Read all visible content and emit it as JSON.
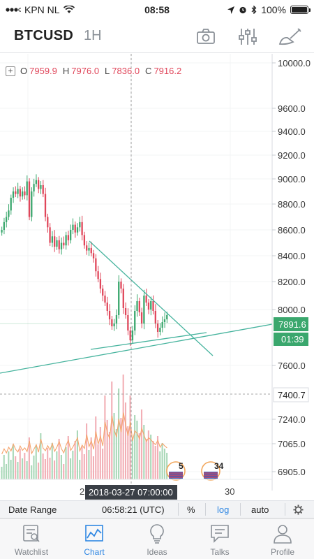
{
  "status_bar": {
    "carrier": "KPN NL",
    "time": "08:58",
    "battery": "100%"
  },
  "header": {
    "symbol": "BTCUSD",
    "interval": "1H",
    "icons": [
      "camera-icon",
      "indicators-icon",
      "drawing-tools-icon"
    ]
  },
  "legend": {
    "open_label": "O",
    "open": "7959.9",
    "high_label": "H",
    "high": "7976.0",
    "low_label": "L",
    "low": "7836.0",
    "close_label": "C",
    "close": "7916.2"
  },
  "chart_data": {
    "type": "candlestick",
    "price_axis_ticks": [
      "10000.0",
      "9600.0",
      "9400.0",
      "9200.0",
      "9000.0",
      "8800.0",
      "8600.0",
      "8400.0",
      "8200.0",
      "8000.0",
      "7600.0",
      "7240.0",
      "7065.0",
      "6905.0"
    ],
    "last_price": "7891.6",
    "countdown": "01:39",
    "crosshair_price": "7400.7",
    "crosshair_time": "2018-03-27 07:00:00",
    "x_tick_labels": [
      "2",
      "30"
    ],
    "event_badges": [
      "5",
      "34"
    ],
    "colors": {
      "up": "#3aa76d",
      "down": "#e0465a",
      "trendline": "#45b39d",
      "volume_up": "#a9d8b8",
      "volume_down": "#f2aeb5",
      "last_price": "#3aa76d"
    }
  },
  "toolbar": {
    "date_range": "Date Range",
    "clock": "06:58:21 (UTC)",
    "percent": "%",
    "log": "log",
    "auto": "auto"
  },
  "tabs": [
    {
      "label": "Watchlist",
      "icon": "watchlist-icon",
      "active": false
    },
    {
      "label": "Chart",
      "icon": "chart-icon",
      "active": true
    },
    {
      "label": "Ideas",
      "icon": "lightbulb-icon",
      "active": false
    },
    {
      "label": "Talks",
      "icon": "chat-icon",
      "active": false
    },
    {
      "label": "Profile",
      "icon": "profile-icon",
      "active": false
    }
  ]
}
